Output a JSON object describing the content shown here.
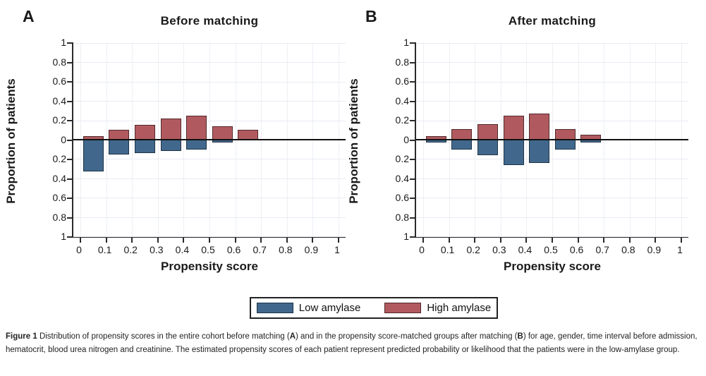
{
  "figure": {
    "panels": [
      {
        "label": "A",
        "title": "Before matching",
        "ylabel": "Proportion of patients",
        "xlabel": "Propensity score",
        "y_ticks": [
          "1",
          "0.8",
          "0.6",
          "0.4",
          "0.2",
          "0",
          "0.2",
          "0.4",
          "0.6",
          "0.8",
          "1"
        ],
        "x_ticks": [
          "0",
          "0.1",
          "0.2",
          "0.3",
          "0.4",
          "0.5",
          "0.6",
          "0.7",
          "0.8",
          "0.9",
          "1"
        ]
      },
      {
        "label": "B",
        "title": "After matching",
        "ylabel": "Proportion of patients",
        "xlabel": "Propensity score",
        "y_ticks": [
          "1",
          "0.8",
          "0.6",
          "0.4",
          "0.2",
          "0",
          "0.2",
          "0.4",
          "0.6",
          "0.8",
          "1"
        ],
        "x_ticks": [
          "0",
          "0.1",
          "0.2",
          "0.3",
          "0.4",
          "0.5",
          "0.6",
          "0.7",
          "0.8",
          "0.9",
          "1"
        ]
      }
    ],
    "legend": [
      {
        "label": "Low amylase",
        "color": "#41688c",
        "border": "#1d3347"
      },
      {
        "label": "High amylase",
        "color": "#b05a5f",
        "border": "#53282c"
      }
    ],
    "caption": {
      "segments": [
        {
          "text": "Figure 1 ",
          "bold": true
        },
        {
          "text": "Distribution of propensity scores in the entire cohort before matching (",
          "bold": false
        },
        {
          "text": "A",
          "bold": true
        },
        {
          "text": ") and in the propensity score-matched groups after matching (",
          "bold": false
        },
        {
          "text": "B",
          "bold": true
        },
        {
          "text": ") for age, gender, time interval before admission, hematocrit, blood urea nitrogen and creatinine. The estimated propensity scores of each patient represent predicted probability or likelihood that the patients were in the low-amylase group.",
          "bold": false
        }
      ]
    }
  },
  "chart_data": [
    {
      "type": "bar",
      "subtype": "mirrored-histogram",
      "title": "Before matching",
      "xlabel": "Propensity score",
      "ylabel": "Proportion of patients",
      "xlim": [
        0,
        1
      ],
      "ylim": [
        -1,
        1
      ],
      "grid": true,
      "bin_centers": [
        0.05,
        0.15,
        0.25,
        0.35,
        0.45,
        0.55,
        0.65
      ],
      "bin_width": 0.08,
      "series": [
        {
          "name": "High amylase",
          "direction": "up",
          "color": "#b05a5f",
          "values": [
            0.04,
            0.1,
            0.15,
            0.22,
            0.25,
            0.14,
            0.1
          ]
        },
        {
          "name": "Low amylase",
          "direction": "down",
          "color": "#41688c",
          "values": [
            0.33,
            0.15,
            0.14,
            0.12,
            0.1,
            0.03,
            0.01
          ]
        }
      ]
    },
    {
      "type": "bar",
      "subtype": "mirrored-histogram",
      "title": "After matching",
      "xlabel": "Propensity score",
      "ylabel": "Proportion of patients",
      "xlim": [
        0,
        1
      ],
      "ylim": [
        -1,
        1
      ],
      "grid": true,
      "bin_centers": [
        0.05,
        0.15,
        0.25,
        0.35,
        0.45,
        0.55,
        0.65
      ],
      "bin_width": 0.08,
      "series": [
        {
          "name": "High amylase",
          "direction": "up",
          "color": "#b05a5f",
          "values": [
            0.04,
            0.11,
            0.16,
            0.25,
            0.27,
            0.11,
            0.05
          ]
        },
        {
          "name": "Low amylase",
          "direction": "down",
          "color": "#41688c",
          "values": [
            0.03,
            0.1,
            0.16,
            0.26,
            0.24,
            0.1,
            0.03
          ]
        }
      ]
    }
  ]
}
